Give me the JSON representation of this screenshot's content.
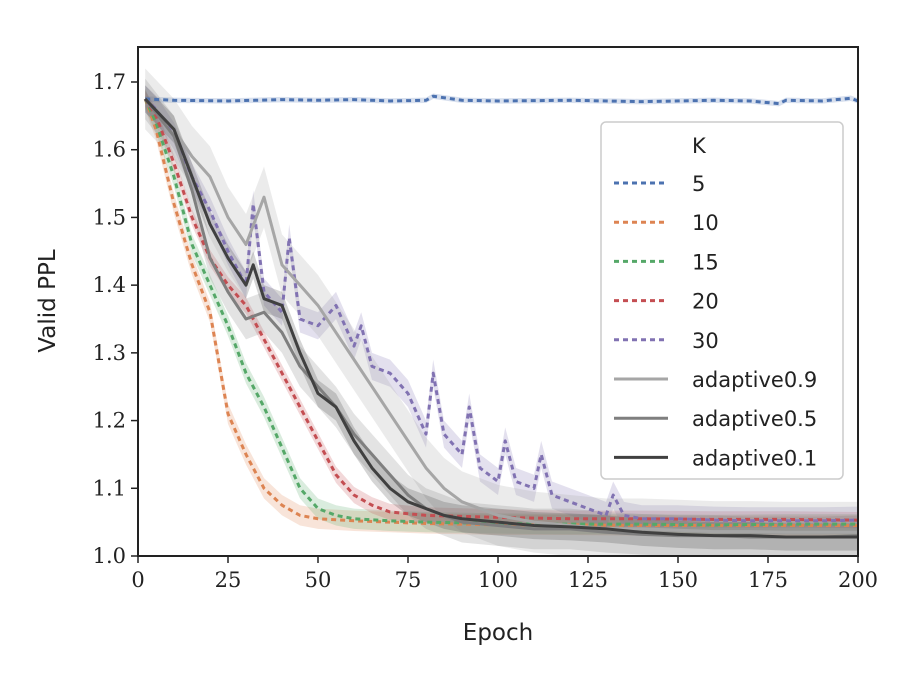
{
  "chart_data": {
    "type": "line",
    "xlabel": "Epoch",
    "ylabel": "Valid PPL",
    "xlim": [
      0,
      200
    ],
    "ylim": [
      1.0,
      1.75
    ],
    "xticks": [
      0,
      25,
      50,
      75,
      100,
      125,
      150,
      175,
      200
    ],
    "yticks": [
      1.0,
      1.1,
      1.2,
      1.3,
      1.4,
      1.5,
      1.6,
      1.7
    ],
    "xtick_labels": [
      "0",
      "25",
      "50",
      "75",
      "100",
      "125",
      "150",
      "175",
      "200"
    ],
    "ytick_labels": [
      "1.0",
      "1.1",
      "1.2",
      "1.3",
      "1.4",
      "1.5",
      "1.6",
      "1.7"
    ],
    "grid": false,
    "legend": {
      "title": "K",
      "position": "right"
    },
    "series": [
      {
        "name": "5",
        "color": "#4c72b0",
        "dash": "dotted",
        "x": [
          2,
          10,
          25,
          40,
          50,
          60,
          70,
          80,
          82,
          90,
          100,
          120,
          140,
          160,
          170,
          178,
          180,
          190,
          198,
          200
        ],
        "y": [
          1.675,
          1.673,
          1.672,
          1.674,
          1.673,
          1.674,
          1.672,
          1.673,
          1.679,
          1.673,
          1.672,
          1.673,
          1.671,
          1.673,
          1.672,
          1.668,
          1.673,
          1.672,
          1.676,
          1.672
        ],
        "band": 0.004
      },
      {
        "name": "10",
        "color": "#dd8452",
        "dash": "dotted",
        "x": [
          2,
          5,
          10,
          15,
          20,
          25,
          30,
          35,
          40,
          45,
          50,
          60,
          70,
          80,
          100,
          120,
          140,
          160,
          180,
          200
        ],
        "y": [
          1.675,
          1.63,
          1.52,
          1.43,
          1.36,
          1.21,
          1.15,
          1.1,
          1.075,
          1.06,
          1.055,
          1.052,
          1.05,
          1.048,
          1.046,
          1.046,
          1.045,
          1.045,
          1.045,
          1.045
        ],
        "band": 0.015
      },
      {
        "name": "15",
        "color": "#55a868",
        "dash": "dotted",
        "x": [
          2,
          5,
          10,
          15,
          20,
          25,
          30,
          35,
          40,
          45,
          50,
          55,
          60,
          70,
          80,
          100,
          120,
          140,
          160,
          180,
          200
        ],
        "y": [
          1.675,
          1.64,
          1.56,
          1.46,
          1.4,
          1.34,
          1.27,
          1.22,
          1.16,
          1.1,
          1.07,
          1.06,
          1.055,
          1.052,
          1.05,
          1.048,
          1.047,
          1.047,
          1.046,
          1.047,
          1.047
        ],
        "band": 0.015
      },
      {
        "name": "20",
        "color": "#c44e52",
        "dash": "dotted",
        "x": [
          2,
          5,
          10,
          15,
          20,
          25,
          30,
          35,
          40,
          45,
          50,
          55,
          60,
          65,
          70,
          80,
          100,
          120,
          140,
          160,
          180,
          200
        ],
        "y": [
          1.675,
          1.65,
          1.58,
          1.5,
          1.44,
          1.4,
          1.37,
          1.32,
          1.27,
          1.22,
          1.17,
          1.12,
          1.09,
          1.075,
          1.065,
          1.06,
          1.057,
          1.055,
          1.055,
          1.054,
          1.054,
          1.053
        ],
        "band": 0.012
      },
      {
        "name": "30",
        "color": "#8172b2",
        "dash": "dotted",
        "x": [
          2,
          5,
          10,
          15,
          20,
          25,
          30,
          32,
          35,
          40,
          42,
          45,
          50,
          55,
          60,
          62,
          65,
          70,
          75,
          80,
          82,
          85,
          90,
          92,
          95,
          100,
          102,
          105,
          110,
          112,
          115,
          120,
          125,
          130,
          132,
          135,
          140,
          150,
          160,
          170,
          180,
          190,
          200
        ],
        "y": [
          1.675,
          1.66,
          1.62,
          1.56,
          1.51,
          1.45,
          1.4,
          1.52,
          1.39,
          1.36,
          1.47,
          1.35,
          1.34,
          1.37,
          1.31,
          1.34,
          1.28,
          1.27,
          1.24,
          1.18,
          1.27,
          1.18,
          1.15,
          1.22,
          1.13,
          1.11,
          1.17,
          1.11,
          1.1,
          1.15,
          1.09,
          1.08,
          1.07,
          1.06,
          1.09,
          1.06,
          1.055,
          1.055,
          1.053,
          1.052,
          1.052,
          1.052,
          1.053
        ],
        "band": 0.02
      },
      {
        "name": "adaptive0.9",
        "color": "#a6a6a6",
        "dash": "solid",
        "x": [
          2,
          10,
          15,
          20,
          25,
          30,
          35,
          40,
          45,
          50,
          55,
          60,
          65,
          70,
          75,
          80,
          85,
          90,
          95,
          100,
          110,
          120,
          130,
          140,
          150,
          160,
          170,
          180,
          190,
          200
        ],
        "y": [
          1.675,
          1.63,
          1.59,
          1.56,
          1.5,
          1.46,
          1.53,
          1.43,
          1.4,
          1.37,
          1.33,
          1.29,
          1.25,
          1.21,
          1.17,
          1.13,
          1.1,
          1.08,
          1.07,
          1.06,
          1.05,
          1.045,
          1.04,
          1.04,
          1.038,
          1.036,
          1.036,
          1.035,
          1.035,
          1.035
        ],
        "band": 0.045
      },
      {
        "name": "adaptive0.5",
        "color": "#7f7f7f",
        "dash": "solid",
        "x": [
          2,
          10,
          15,
          20,
          25,
          30,
          35,
          40,
          45,
          50,
          55,
          60,
          65,
          70,
          75,
          80,
          85,
          90,
          100,
          110,
          120,
          130,
          140,
          150,
          160,
          170,
          180,
          190,
          200
        ],
        "y": [
          1.675,
          1.62,
          1.54,
          1.44,
          1.39,
          1.35,
          1.36,
          1.33,
          1.28,
          1.25,
          1.22,
          1.18,
          1.15,
          1.12,
          1.09,
          1.07,
          1.06,
          1.05,
          1.045,
          1.04,
          1.04,
          1.035,
          1.032,
          1.03,
          1.03,
          1.028,
          1.028,
          1.028,
          1.03
        ],
        "band": 0.03
      },
      {
        "name": "adaptive0.1",
        "color": "#404040",
        "dash": "solid",
        "x": [
          2,
          10,
          15,
          20,
          25,
          30,
          32,
          35,
          40,
          45,
          50,
          55,
          60,
          65,
          70,
          75,
          80,
          85,
          90,
          100,
          110,
          120,
          130,
          140,
          150,
          160,
          170,
          180,
          190,
          200
        ],
        "y": [
          1.675,
          1.63,
          1.56,
          1.49,
          1.44,
          1.4,
          1.43,
          1.38,
          1.37,
          1.3,
          1.24,
          1.22,
          1.17,
          1.13,
          1.1,
          1.08,
          1.07,
          1.06,
          1.055,
          1.05,
          1.045,
          1.043,
          1.04,
          1.035,
          1.032,
          1.03,
          1.03,
          1.028,
          1.028,
          1.028
        ],
        "band": 0.02
      }
    ]
  }
}
